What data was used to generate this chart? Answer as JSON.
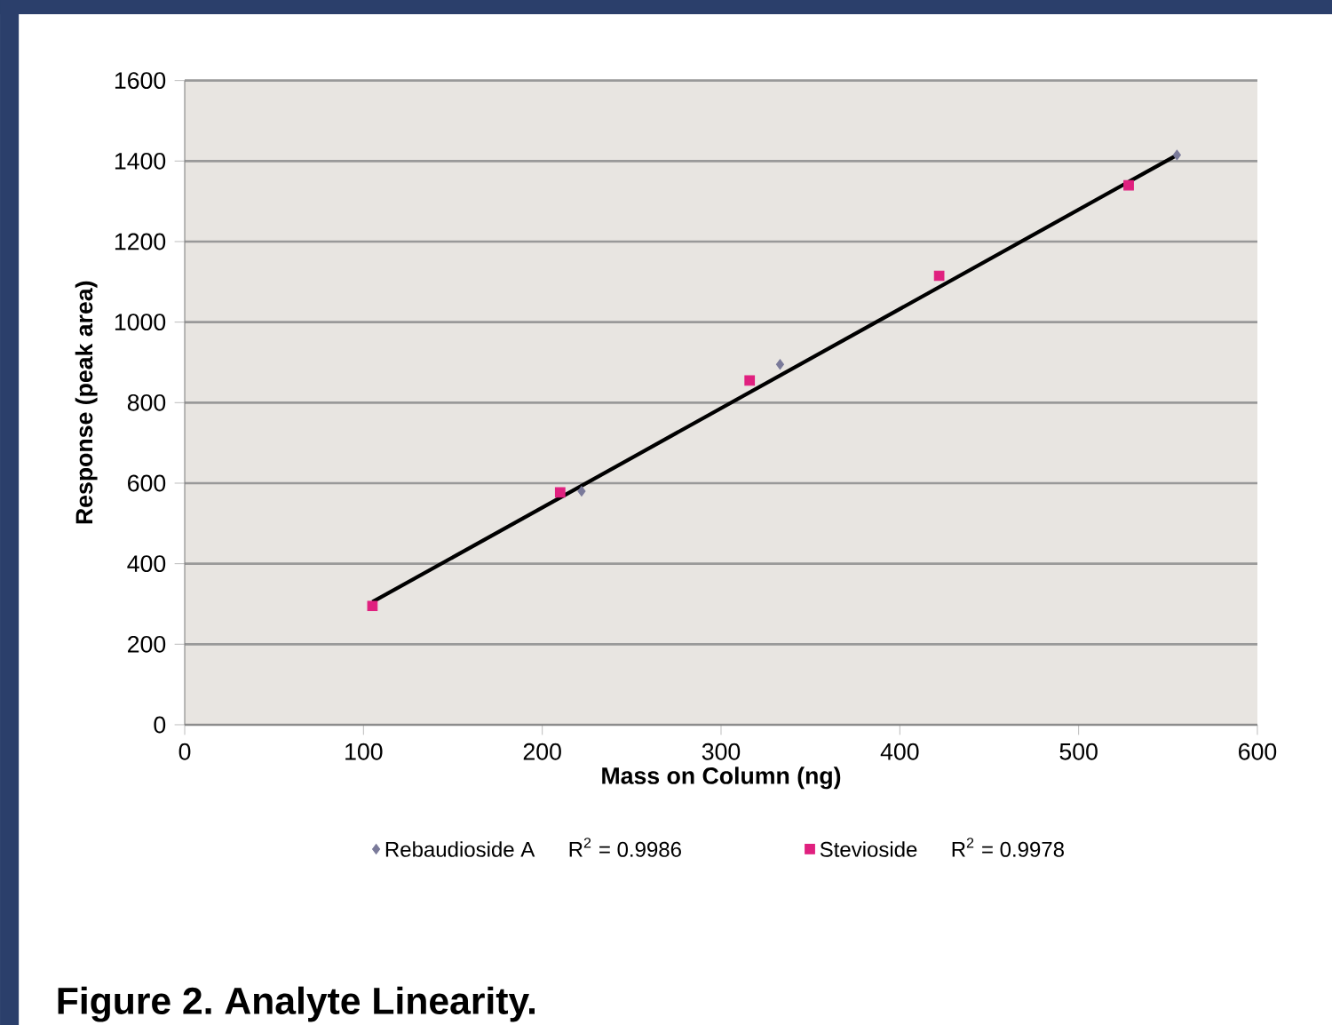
{
  "chart_data": {
    "type": "scatter",
    "title": "Figure 2. Analyte Linearity.",
    "xlabel": "Mass on Column (ng)",
    "ylabel": "Response (peak area)",
    "xlim": [
      0,
      600
    ],
    "xticks": [
      0,
      100,
      200,
      300,
      400,
      500,
      600
    ],
    "ylim": [
      0,
      1600
    ],
    "yticks": [
      0,
      200,
      400,
      600,
      800,
      1000,
      1200,
      1400,
      1600
    ],
    "grid": "y",
    "legend": "bottom",
    "annotations": [
      "R$^{2}$ = 0.9986",
      "R$^{2}$ = 0.9978"
    ],
    "series": [
      {
        "name": "Rebaudioside A",
        "color": "#7a7a9a",
        "marker": "diamond",
        "x": [
          222,
          333,
          555
        ],
        "values": [
          580,
          895,
          1415
        ]
      },
      {
        "name": "Stevioside",
        "color": "#e0207f",
        "marker": "square",
        "x": [
          105,
          210,
          316,
          422,
          528
        ],
        "values": [
          295,
          577,
          855,
          1115,
          1340
        ]
      },
      {
        "type": "line",
        "color": "#000000",
        "marker": "none",
        "x": [
          105,
          555
        ],
        "values": [
          305,
          1415
        ]
      }
    ]
  }
}
